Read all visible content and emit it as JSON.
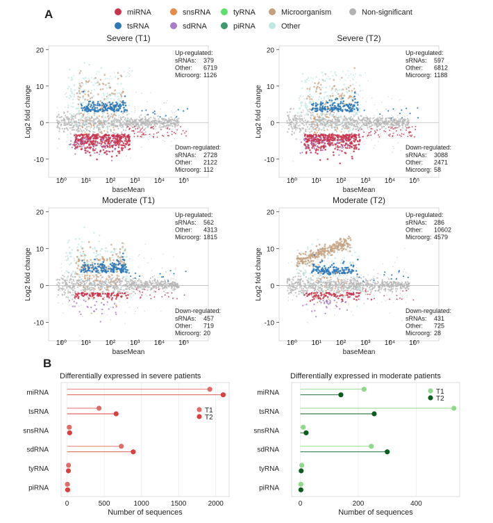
{
  "panel_labels": [
    "A",
    "B"
  ],
  "legend": {
    "items": [
      {
        "label": "miRNA",
        "color": "#c8334d"
      },
      {
        "label": "snsRNA",
        "color": "#e8894a"
      },
      {
        "label": "tyRNA",
        "color": "#5ddf6e"
      },
      {
        "label": "Microorganism",
        "color": "#c4a07e"
      },
      {
        "label": "Non-significant",
        "color": "#b3b3b3"
      },
      {
        "label": "tsRNA",
        "color": "#2e78b7"
      },
      {
        "label": "sdRNA",
        "color": "#a67ec8"
      },
      {
        "label": "piRNA",
        "color": "#3e9a6c"
      },
      {
        "label": "Other",
        "color": "#bfe8e4"
      }
    ]
  },
  "chart_data": [
    {
      "type": "scatter",
      "title": "Severe (T1)",
      "xlabel": "baseMean",
      "ylabel": "Log2 fold change",
      "x_scale": "log",
      "xlim": [
        0.3,
        1000000
      ],
      "ylim": [
        -15,
        21
      ],
      "x_ticks": [
        "10⁰",
        "10¹",
        "10²",
        "10³",
        "10⁴",
        "10⁵"
      ],
      "y_ticks": [
        -10,
        0,
        10,
        20
      ],
      "up": {
        "title": "Up-regulated:",
        "rows": [
          [
            "sRNAs:",
            "379"
          ],
          [
            "Other:",
            "6719"
          ],
          [
            "Microorg:",
            "1126"
          ]
        ]
      },
      "down": {
        "title": "Down-regulated:",
        "rows": [
          [
            "sRNAs:",
            "2728"
          ],
          [
            "Other:",
            "2122"
          ],
          [
            "Microorg:",
            "112"
          ]
        ]
      }
    },
    {
      "type": "scatter",
      "title": "Severe (T2)",
      "xlabel": "baseMean",
      "ylabel": "Log2 fold change",
      "x_scale": "log",
      "xlim": [
        0.3,
        1000000
      ],
      "ylim": [
        -15,
        21
      ],
      "x_ticks": [
        "10⁰",
        "10¹",
        "10²",
        "10³",
        "10⁴",
        "10⁵"
      ],
      "y_ticks": [
        -10,
        0,
        10,
        20
      ],
      "up": {
        "title": "Up-regulated:",
        "rows": [
          [
            "sRNAs:",
            "597"
          ],
          [
            "Other:",
            "6812"
          ],
          [
            "Microorg:",
            "1188"
          ]
        ]
      },
      "down": {
        "title": "Down-regulated:",
        "rows": [
          [
            "sRNAs:",
            "3088"
          ],
          [
            "Other:",
            "2471"
          ],
          [
            "Microorg:",
            "58"
          ]
        ]
      }
    },
    {
      "type": "scatter",
      "title": "Moderate (T1)",
      "xlabel": "baseMean",
      "ylabel": "Log2 fold change",
      "x_scale": "log",
      "xlim": [
        0.3,
        1000000
      ],
      "ylim": [
        -15,
        21
      ],
      "x_ticks": [
        "10⁰",
        "10¹",
        "10²",
        "10³",
        "10⁴",
        "10⁵"
      ],
      "y_ticks": [
        -10,
        0,
        10,
        20
      ],
      "up": {
        "title": "Up-regulated:",
        "rows": [
          [
            "sRNAs:",
            "562"
          ],
          [
            "Other:",
            "4313"
          ],
          [
            "Microorg:",
            "1815"
          ]
        ]
      },
      "down": {
        "title": "Down-regulated:",
        "rows": [
          [
            "sRNAs:",
            "457"
          ],
          [
            "Other:",
            "719"
          ],
          [
            "Microorg:",
            "20"
          ]
        ]
      }
    },
    {
      "type": "scatter",
      "title": "Moderate (T2)",
      "xlabel": "baseMean",
      "ylabel": "Log2 fold change",
      "x_scale": "log",
      "xlim": [
        0.3,
        1000000
      ],
      "ylim": [
        -15,
        21
      ],
      "x_ticks": [
        "10⁰",
        "10¹",
        "10²",
        "10³",
        "10⁴",
        "10⁵"
      ],
      "y_ticks": [
        -10,
        0,
        10,
        20
      ],
      "up": {
        "title": "Up-regulated:",
        "rows": [
          [
            "sRNAs:",
            "286"
          ],
          [
            "Other:",
            "10602"
          ],
          [
            "Microorg:",
            "4579"
          ]
        ]
      },
      "down": {
        "title": "Down-regulated:",
        "rows": [
          [
            "sRNAs:",
            "431"
          ],
          [
            "Other:",
            "725"
          ],
          [
            "Microorg:",
            "28"
          ]
        ]
      }
    },
    {
      "type": "lollipop",
      "title": "Differentially expressed in severe patients",
      "xlabel": "Number of sequences",
      "categories": [
        "miRNA",
        "tsRNA",
        "snsRNA",
        "sdRNA",
        "tyRNA",
        "piRNA"
      ],
      "xlim": [
        -80,
        2180
      ],
      "x_ticks": [
        0,
        500,
        1000,
        1500,
        2000
      ],
      "series": [
        {
          "name": "T1",
          "color": "#e06c68",
          "values": [
            1920,
            430,
            30,
            730,
            20,
            5
          ]
        },
        {
          "name": "T2",
          "color": "#d8413f",
          "values": [
            2100,
            660,
            35,
            890,
            18,
            8
          ]
        }
      ]
    },
    {
      "type": "lollipop",
      "title": "Differentially expressed in moderate patients",
      "xlabel": "Number of sequences",
      "categories": [
        "miRNA",
        "tsRNA",
        "snsRNA",
        "sdRNA",
        "tyRNA",
        "piRNA"
      ],
      "xlim": [
        -30,
        550
      ],
      "x_ticks": [
        0,
        200,
        400
      ],
      "series": [
        {
          "name": "T1",
          "color": "#8fd98a",
          "values": [
            220,
            530,
            10,
            245,
            5,
            2
          ]
        },
        {
          "name": "T2",
          "color": "#0b5d1e",
          "values": [
            140,
            255,
            20,
            300,
            3,
            2
          ]
        }
      ]
    }
  ]
}
